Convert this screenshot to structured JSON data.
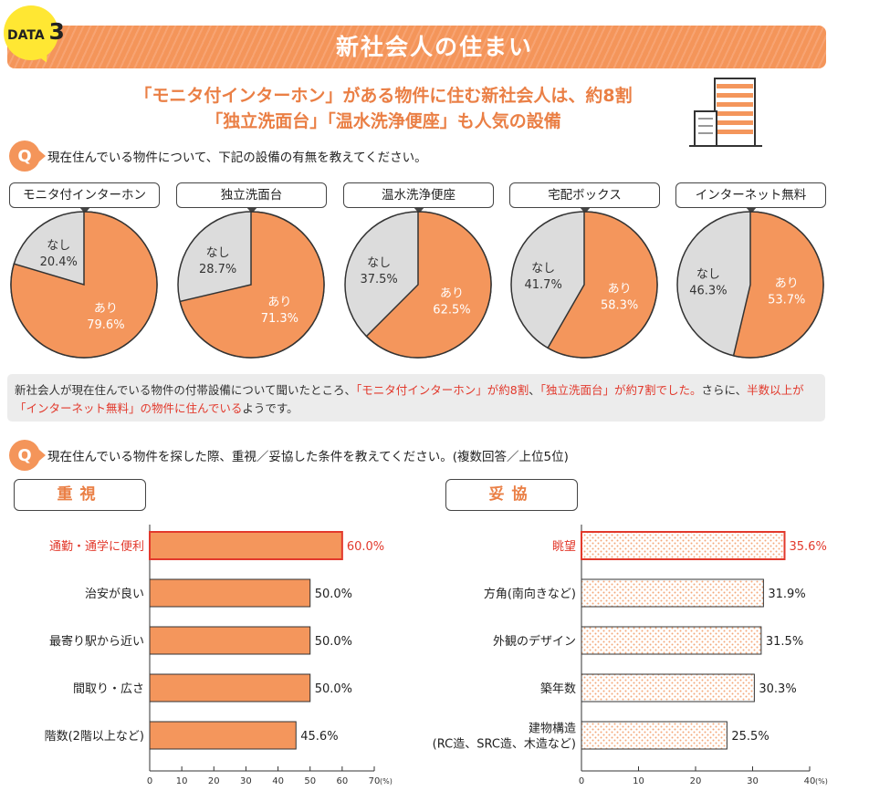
{
  "header": {
    "badge_prefix": "DATA",
    "badge_number": "3",
    "title": "新社会人の住まい"
  },
  "headline": [
    "「モニタ付インターホン」がある物件に住む新社会人は、約8割",
    "「独立洗面台」「温水洗浄便座」も人気の設備"
  ],
  "q1": {
    "badge": "Q",
    "text": "現在住んでいる物件について、下記の設備の有無を教えてください。"
  },
  "summary": {
    "parts": [
      {
        "text": "新社会人が現在住んでいる物件の付帯設備について聞いたところ、",
        "red": false
      },
      {
        "text": "「モニタ付インターホン」が約8割",
        "red": true
      },
      {
        "text": "、",
        "red": false
      },
      {
        "text": "「独立洗面台」が約7割でした。",
        "red": true
      },
      {
        "text": "さらに、",
        "red": false
      },
      {
        "text": "半数以上が「インターネット無料」の物件に住んでいる",
        "red": true
      },
      {
        "text": "ようです。",
        "red": false
      }
    ]
  },
  "q2": {
    "badge": "Q",
    "text": "現在住んでいる物件を探した際、重視／妥協した条件を教えてください。(複数回答／上位5位)"
  },
  "colors": {
    "orange": "#f4965c",
    "gray": "#dcdcdc",
    "red": "#e2392c",
    "accent": "#ea7f45"
  },
  "chart_data": [
    {
      "type": "pie",
      "title": "モニタ付インターホン",
      "labels": [
        "あり",
        "なし"
      ],
      "values": [
        79.6,
        20.4
      ],
      "value_labels": [
        "79.6%",
        "20.4%"
      ]
    },
    {
      "type": "pie",
      "title": "独立洗面台",
      "labels": [
        "あり",
        "なし"
      ],
      "values": [
        71.3,
        28.7
      ],
      "value_labels": [
        "71.3%",
        "28.7%"
      ]
    },
    {
      "type": "pie",
      "title": "温水洗浄便座",
      "labels": [
        "あり",
        "なし"
      ],
      "values": [
        62.5,
        37.5
      ],
      "value_labels": [
        "62.5%",
        "37.5%"
      ]
    },
    {
      "type": "pie",
      "title": "宅配ボックス",
      "labels": [
        "あり",
        "なし"
      ],
      "values": [
        58.3,
        41.7
      ],
      "value_labels": [
        "58.3%",
        "41.7%"
      ]
    },
    {
      "type": "pie",
      "title": "インターネット無料",
      "labels": [
        "あり",
        "なし"
      ],
      "values": [
        53.7,
        46.3
      ],
      "value_labels": [
        "53.7%",
        "46.3%"
      ]
    },
    {
      "type": "bar",
      "orientation": "horizontal",
      "title": "重視",
      "categories": [
        "通勤・通学に便利",
        "治安が良い",
        "最寄り駅から近い",
        "間取り・広さ",
        "階数(2階以上など)"
      ],
      "values": [
        60.0,
        50.0,
        50.0,
        50.0,
        45.6
      ],
      "value_labels": [
        "60.0%",
        "50.0%",
        "50.0%",
        "50.0%",
        "45.6%"
      ],
      "highlight": 0,
      "xlim": [
        0,
        70
      ],
      "xticks": [
        "0",
        "10",
        "20",
        "30",
        "40",
        "50",
        "60",
        "70"
      ],
      "unit": "(%)"
    },
    {
      "type": "bar",
      "orientation": "horizontal",
      "title": "妥協",
      "categories": [
        "眺望",
        "方角(南向きなど)",
        "外観のデザイン",
        "築年数",
        "建物構造\n(RC造、SRC造、木造など)"
      ],
      "values": [
        35.6,
        31.9,
        31.5,
        30.3,
        25.5
      ],
      "value_labels": [
        "35.6%",
        "31.9%",
        "31.5%",
        "30.3%",
        "25.5%"
      ],
      "highlight": 0,
      "xlim": [
        0,
        40
      ],
      "xticks": [
        "0",
        "10",
        "20",
        "30",
        "40"
      ],
      "unit": "(%)"
    }
  ]
}
